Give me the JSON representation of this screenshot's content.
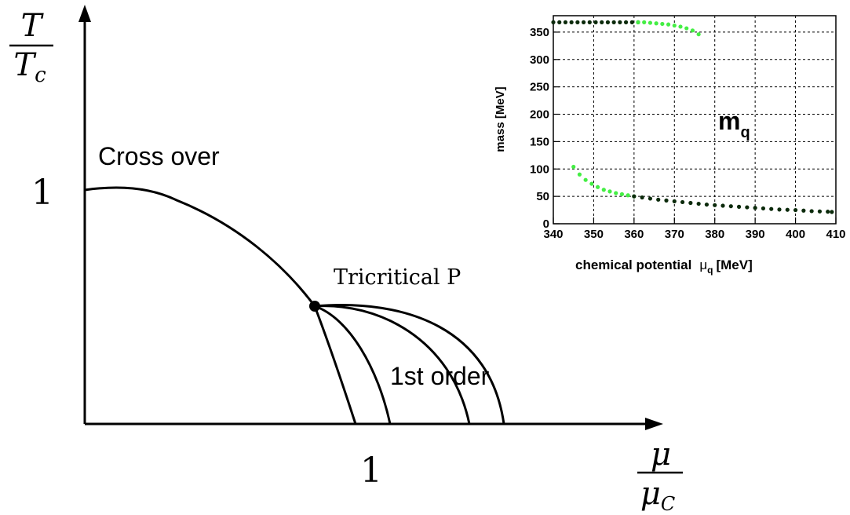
{
  "phase_diagram": {
    "y_label_num": "T",
    "y_label_den": "T_c",
    "y_label_den_main": "T",
    "y_label_den_sub": "c",
    "x_label_num": "μ",
    "x_label_den": "μ_c",
    "x_label_den_main": "μ",
    "x_label_den_sub": "C",
    "y_tick": "1",
    "x_tick": "1",
    "crossover_label": "Cross over",
    "tricritical_label": "Tricritical P",
    "first_order_label": "1st order"
  },
  "chart_data": {
    "type": "scatter",
    "title": "",
    "annotation": "m_q",
    "annotation_main": "m",
    "annotation_sub": "q",
    "xlabel": "chemical potential  μ_q [MeV]",
    "xlabel_text": "chemical potential",
    "xlabel_mu": "μ",
    "xlabel_sub": "q",
    "xlabel_unit": "[MeV]",
    "ylabel": "mass [MeV]",
    "xlim": [
      340,
      410
    ],
    "ylim": [
      0,
      380
    ],
    "xticks": [
      "340",
      "350",
      "360",
      "370",
      "380",
      "390",
      "400",
      "410"
    ],
    "yticks": [
      "0",
      "50",
      "100",
      "150",
      "200",
      "250",
      "300",
      "350"
    ],
    "grid": true,
    "series": [
      {
        "color": "#0b2a0b",
        "x": [
          340,
          341.5,
          343,
          344.5,
          346,
          347.5,
          349,
          350.5,
          352,
          353.5,
          355,
          356.5,
          358,
          359.5,
          361
        ],
        "y": [
          368,
          368,
          368,
          368,
          368,
          368,
          368,
          368,
          368,
          368,
          368,
          368,
          368,
          368,
          368
        ]
      },
      {
        "color": "#44ee44",
        "x": [
          361,
          362.5,
          364,
          365.5,
          367,
          368.5,
          370,
          371.5,
          373,
          374.5,
          376
        ],
        "y": [
          368,
          368,
          367,
          366,
          365,
          364,
          362,
          360,
          357,
          353,
          346
        ]
      },
      {
        "color": "#44ee44",
        "x": [
          345,
          346.5,
          348,
          349.5,
          351,
          352.5,
          354,
          355.5,
          357,
          358.5,
          360
        ],
        "y": [
          104,
          90,
          80,
          73,
          67,
          62,
          59,
          56,
          54,
          52,
          50
        ]
      },
      {
        "color": "#0b2a0b",
        "x": [
          360,
          362,
          364,
          366,
          368,
          370,
          372,
          374,
          376,
          378,
          380,
          382,
          384,
          386,
          388,
          390,
          392,
          394,
          396,
          398,
          400,
          402,
          404,
          406,
          408,
          409
        ],
        "y": [
          50,
          48,
          46,
          44,
          42.5,
          41,
          39.5,
          38,
          36.5,
          35,
          34,
          33,
          32,
          31,
          30,
          29,
          28,
          27,
          26,
          25.5,
          25,
          24,
          23,
          22.5,
          22,
          21.5
        ]
      }
    ]
  }
}
